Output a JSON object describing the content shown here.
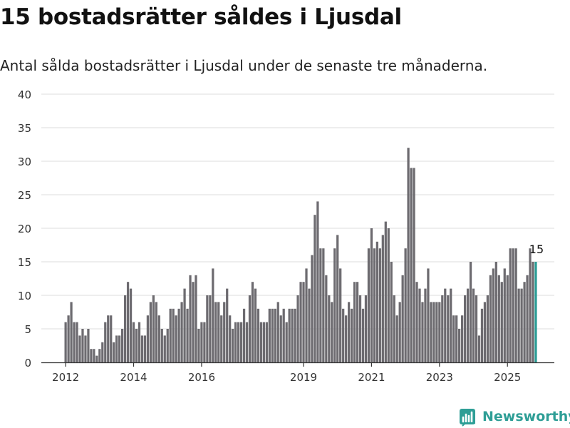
{
  "title": "15 bostadsrätter såldes i Ljusdal",
  "subtitle": "Antal sålda bostadsrätter i Ljusdal under de senaste tre månaderna.",
  "brand": "Newsworthy",
  "colors": {
    "bar": "#6d6b70",
    "highlight": "#2a9d96",
    "grid": "#dcdcdc",
    "axis": "#333333",
    "brand": "#2e9e96"
  },
  "chart_data": {
    "type": "bar",
    "title": "",
    "xlabel": "",
    "ylabel": "",
    "ylim": [
      0,
      40
    ],
    "yticks": [
      0,
      5,
      10,
      15,
      20,
      25,
      30,
      35,
      40
    ],
    "xticks": [
      "2012",
      "2014",
      "2016",
      "2019",
      "2021",
      "2023",
      "2025"
    ],
    "grid": true,
    "highlight_label": "15",
    "values": [
      6,
      7,
      9,
      6,
      6,
      4,
      5,
      4,
      5,
      2,
      2,
      1,
      2,
      3,
      6,
      7,
      7,
      3,
      4,
      4,
      5,
      10,
      12,
      11,
      6,
      5,
      6,
      4,
      4,
      7,
      9,
      10,
      9,
      7,
      5,
      4,
      5,
      8,
      8,
      7,
      8,
      9,
      11,
      8,
      13,
      12,
      13,
      5,
      6,
      6,
      10,
      10,
      14,
      9,
      9,
      7,
      9,
      11,
      7,
      5,
      6,
      6,
      6,
      8,
      6,
      10,
      12,
      11,
      8,
      6,
      6,
      6,
      8,
      8,
      8,
      9,
      7,
      8,
      6,
      8,
      8,
      8,
      10,
      12,
      12,
      14,
      11,
      16,
      22,
      24,
      17,
      17,
      13,
      10,
      9,
      17,
      19,
      14,
      8,
      7,
      9,
      8,
      12,
      12,
      10,
      8,
      10,
      17,
      20,
      17,
      18,
      17,
      19,
      21,
      20,
      15,
      10,
      7,
      9,
      13,
      17,
      32,
      29,
      29,
      12,
      11,
      9,
      11,
      14,
      9,
      9,
      9,
      9,
      10,
      11,
      10,
      11,
      7,
      7,
      5,
      7,
      10,
      11,
      15,
      11,
      10,
      4,
      8,
      9,
      10,
      13,
      14,
      15,
      13,
      12,
      14,
      13,
      17,
      17,
      17,
      11,
      11,
      12,
      13,
      17,
      15,
      15
    ]
  }
}
